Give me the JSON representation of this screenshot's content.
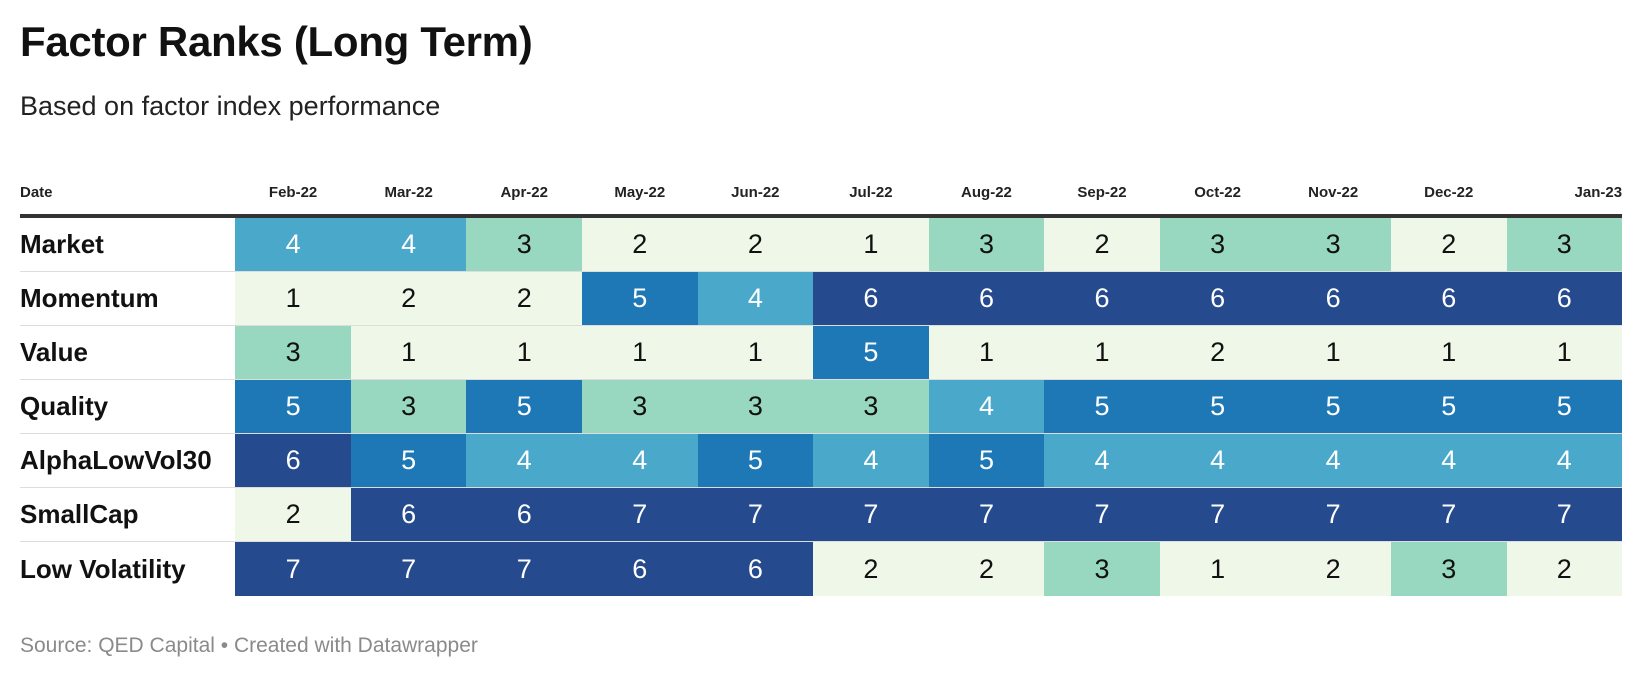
{
  "header": {
    "title": "Factor Ranks (Long Term)",
    "subtitle": "Based on factor index performance"
  },
  "footer": {
    "source": "Source: QED Capital • Created with Datawrapper"
  },
  "colors": {
    "rank_1": "#eef7e8",
    "rank_2": "#eef7e8",
    "rank_3": "#98d7c0",
    "rank_4": "#4aa8cb",
    "rank_5": "#1f78b6",
    "rank_6": "#254b8e",
    "rank_7": "#254b8e",
    "text_dark": "#111111",
    "text_light": "#ffffff"
  },
  "chart_data": {
    "type": "heatmap",
    "title": "Factor Ranks (Long Term)",
    "subtitle": "Based on factor index performance",
    "row_header": "Date",
    "columns": [
      "Feb-22",
      "Mar-22",
      "Apr-22",
      "May-22",
      "Jun-22",
      "Jul-22",
      "Aug-22",
      "Sep-22",
      "Oct-22",
      "Nov-22",
      "Dec-22",
      "Jan-23"
    ],
    "rows": [
      {
        "name": "Market",
        "values": [
          4,
          4,
          3,
          2,
          2,
          1,
          3,
          2,
          3,
          3,
          2,
          3
        ]
      },
      {
        "name": "Momentum",
        "values": [
          1,
          2,
          2,
          5,
          4,
          6,
          6,
          6,
          6,
          6,
          6,
          6
        ]
      },
      {
        "name": "Value",
        "values": [
          3,
          1,
          1,
          1,
          1,
          5,
          1,
          1,
          2,
          1,
          1,
          1
        ]
      },
      {
        "name": "Quality",
        "values": [
          5,
          3,
          5,
          3,
          3,
          3,
          4,
          5,
          5,
          5,
          5,
          5
        ]
      },
      {
        "name": "AlphaLowVol30",
        "values": [
          6,
          5,
          4,
          4,
          5,
          4,
          5,
          4,
          4,
          4,
          4,
          4
        ]
      },
      {
        "name": "SmallCap",
        "values": [
          2,
          6,
          6,
          7,
          7,
          7,
          7,
          7,
          7,
          7,
          7,
          7
        ]
      },
      {
        "name": "Low Volatility",
        "values": [
          7,
          7,
          7,
          6,
          6,
          2,
          2,
          3,
          1,
          2,
          3,
          2
        ]
      }
    ],
    "source": "Source: QED Capital • Created with Datawrapper"
  }
}
